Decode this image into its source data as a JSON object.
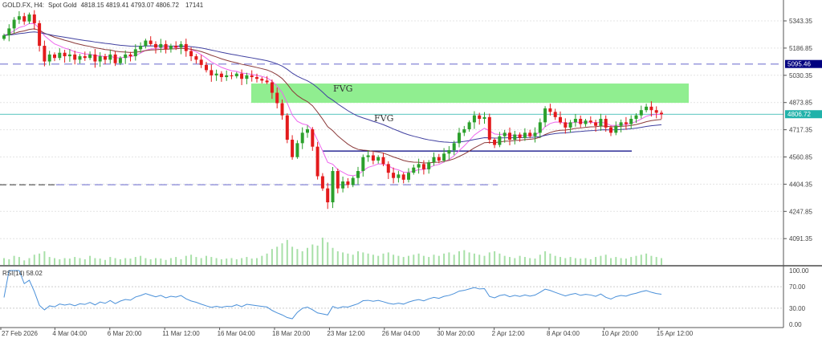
{
  "header": {
    "symbol": "GOLD.FX, H4:",
    "description": "Spot Gold",
    "ohlc": "4818.15 4819.41 4793.07 4806.72",
    "volume": "17141"
  },
  "rsi_label": "RSI(14) 58.02",
  "colors": {
    "bull": "#2ca02c",
    "bear": "#e31a1c",
    "fvg": "#90ee90",
    "ma_fast": "#ee66ee",
    "ma_mid": "#8b3a3a",
    "ma_slow": "#4040a0",
    "rsi": "#4a90d9",
    "last_price": "#20b2aa",
    "level_dashed": "#9999dd",
    "support": "#000080"
  },
  "chart_data": {
    "type": "candlestick",
    "price_ticks": [
      "5343.35",
      "5186.85",
      "5030.35",
      "4873.85",
      "4717.35",
      "4560.85",
      "4404.35",
      "4247.85",
      "4091.35"
    ],
    "price_range": [
      4040,
      5460
    ],
    "rsi_ticks": [
      "100.00",
      "70.00",
      "30.00",
      "0.00"
    ],
    "time_labels": [
      "27 Feb 2026",
      "4 Mar 04:00",
      "6 Mar 20:00",
      "11 Mar 12:00",
      "16 Mar 04:00",
      "18 Mar 20:00",
      "23 Mar 12:00",
      "26 Mar 04:00",
      "30 Mar 20:00",
      "2 Apr 12:00",
      "8 Apr 04:00",
      "10 Apr 20:00",
      "15 Apr 12:00"
    ],
    "closes": [
      5260,
      5300,
      5350,
      5370,
      5340,
      5380,
      5330,
      5200,
      5110,
      5150,
      5130,
      5160,
      5140,
      5150,
      5120,
      5140,
      5130,
      5150,
      5110,
      5140,
      5120,
      5150,
      5100,
      5130,
      5150,
      5140,
      5180,
      5200,
      5230,
      5210,
      5190,
      5210,
      5180,
      5200,
      5190,
      5210,
      5170,
      5140,
      5120,
      5090,
      5060,
      5030,
      5040,
      5020,
      5030,
      5025,
      5040,
      5010,
      5030,
      5020,
      5010,
      5000,
      4990,
      4930,
      4870,
      4800,
      4660,
      4560,
      4640,
      4700,
      4720,
      4620,
      4450,
      4380,
      4300,
      4480,
      4380,
      4420,
      4400,
      4440,
      4480,
      4560,
      4570,
      4540,
      4560,
      4520,
      4470,
      4440,
      4460,
      4430,
      4470,
      4500,
      4520,
      4490,
      4530,
      4560,
      4540,
      4580,
      4600,
      4640,
      4700,
      4720,
      4760,
      4800,
      4780,
      4790,
      4660,
      4630,
      4680,
      4700,
      4660,
      4690,
      4670,
      4700,
      4680,
      4700,
      4760,
      4840,
      4820,
      4790,
      4760,
      4730,
      4760,
      4780,
      4750,
      4770,
      4760,
      4740,
      4780,
      4730,
      4700,
      4740,
      4760,
      4750,
      4780,
      4800,
      4830,
      4850,
      4830,
      4815,
      4806.72
    ],
    "volumes": [
      30,
      25,
      40,
      35,
      20,
      30,
      45,
      50,
      60,
      35,
      30,
      25,
      30,
      28,
      35,
      30,
      25,
      40,
      30,
      28,
      22,
      35,
      30,
      25,
      30,
      28,
      35,
      40,
      30,
      25,
      30,
      28,
      22,
      30,
      35,
      25,
      40,
      45,
      35,
      30,
      40,
      35,
      30,
      25,
      28,
      30,
      25,
      30,
      35,
      28,
      30,
      40,
      50,
      70,
      80,
      95,
      110,
      80,
      70,
      60,
      75,
      90,
      85,
      120,
      100,
      75,
      60,
      55,
      50,
      45,
      60,
      55,
      50,
      45,
      40,
      50,
      55,
      45,
      40,
      35,
      40,
      45,
      50,
      40,
      35,
      45,
      40,
      50,
      55,
      45,
      60,
      65,
      55,
      50,
      45,
      40,
      55,
      60,
      50,
      40,
      35,
      30,
      40,
      35,
      30,
      28,
      45,
      60,
      50,
      40,
      35,
      30,
      35,
      30,
      28,
      30,
      25,
      35,
      40,
      45,
      30,
      35,
      30,
      28,
      35,
      40,
      45,
      50,
      40,
      35,
      30
    ],
    "levels": {
      "resistance_dashed": 5095.46,
      "last_price": 4806.72,
      "support": 4595,
      "lower_dashed": 4401
    },
    "fvg_zone": {
      "top": 4983,
      "bottom": 4872,
      "labels": [
        "FVG",
        "FVG"
      ]
    },
    "rsi_range": [
      0,
      100
    ]
  }
}
